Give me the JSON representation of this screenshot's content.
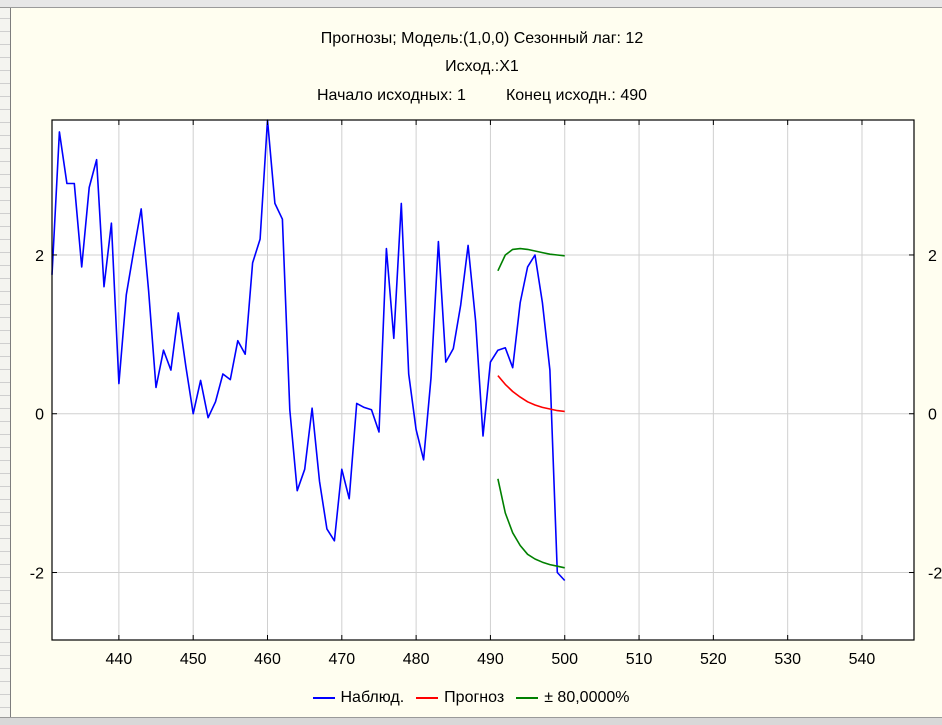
{
  "chart_data": {
    "type": "line",
    "title_lines": [
      "Прогнозы; Модель:(1,0,0) Сезонный лаг: 12",
      "Исход.:X1"
    ],
    "range_info": {
      "start_label": "Начало исходных: 1",
      "end_label": "Конец исходн.: 490"
    },
    "xlim": [
      431,
      547
    ],
    "ylim": [
      -2.85,
      3.7
    ],
    "x_ticks": [
      440,
      450,
      460,
      470,
      480,
      490,
      500,
      510,
      520,
      530,
      540
    ],
    "x_tick_labels": [
      "440",
      "450",
      "460",
      "470",
      "480",
      "490",
      "500",
      "510",
      "520",
      "530",
      "540"
    ],
    "y_ticks": [
      -2,
      0,
      2
    ],
    "y_tick_labels_left": [
      "-2",
      "0",
      "2"
    ],
    "y_tick_labels_right": [
      "-2",
      "0",
      "2"
    ],
    "grid": true,
    "legend_position": "bottom",
    "series": [
      {
        "name": "Наблюд.",
        "color": "#0000ff",
        "x": [
          431,
          432,
          433,
          434,
          435,
          436,
          437,
          438,
          439,
          440,
          441,
          442,
          443,
          444,
          445,
          446,
          447,
          448,
          449,
          450,
          451,
          452,
          453,
          454,
          455,
          456,
          457,
          458,
          459,
          460,
          461,
          462,
          463,
          464,
          465,
          466,
          467,
          468,
          469,
          470,
          471,
          472,
          473,
          474,
          475,
          476,
          477,
          478,
          479,
          480,
          481,
          482,
          483,
          484,
          485,
          486,
          487,
          488,
          489,
          490,
          491,
          492,
          493,
          494,
          495,
          496,
          497,
          498,
          499,
          500
        ],
        "y": [
          1.75,
          3.55,
          2.9,
          2.9,
          1.85,
          2.85,
          3.2,
          1.6,
          2.4,
          0.38,
          1.5,
          2.05,
          2.58,
          1.55,
          0.33,
          0.8,
          0.55,
          1.27,
          0.6,
          0.0,
          0.42,
          -0.05,
          0.15,
          0.5,
          0.43,
          0.92,
          0.75,
          1.9,
          2.2,
          3.7,
          2.65,
          2.45,
          0.05,
          -0.97,
          -0.7,
          0.07,
          -0.85,
          -1.45,
          -1.6,
          -0.7,
          -1.07,
          0.13,
          0.08,
          0.05,
          -0.23,
          2.08,
          0.95,
          2.65,
          0.5,
          -0.2,
          -0.58,
          0.45,
          2.17,
          0.65,
          0.82,
          1.37,
          2.12,
          1.17,
          -0.28,
          0.65,
          0.8,
          0.83,
          0.58,
          1.4,
          1.85,
          2.0,
          1.4,
          0.55,
          -2.0,
          -2.1
        ]
      },
      {
        "name": "Прогноз",
        "color": "#ff0000",
        "x": [
          491,
          492,
          493,
          494,
          495,
          496,
          497,
          498,
          499,
          500
        ],
        "y": [
          0.48,
          0.37,
          0.28,
          0.21,
          0.15,
          0.11,
          0.08,
          0.06,
          0.04,
          0.03
        ]
      },
      {
        "name": "± 80,0000%",
        "color": "#008000",
        "x": [
          491,
          492,
          493,
          494,
          495,
          496,
          497,
          498,
          499,
          500
        ],
        "y": [
          1.8,
          2.0,
          2.07,
          2.08,
          2.07,
          2.05,
          2.03,
          2.01,
          2.0,
          1.99
        ]
      },
      {
        "name": "± 80,0000%",
        "color": "#008000",
        "show_in_legend": false,
        "x": [
          491,
          492,
          493,
          494,
          495,
          496,
          497,
          498,
          499,
          500
        ],
        "y": [
          -0.82,
          -1.25,
          -1.5,
          -1.66,
          -1.77,
          -1.83,
          -1.87,
          -1.9,
          -1.92,
          -1.94
        ]
      }
    ]
  }
}
